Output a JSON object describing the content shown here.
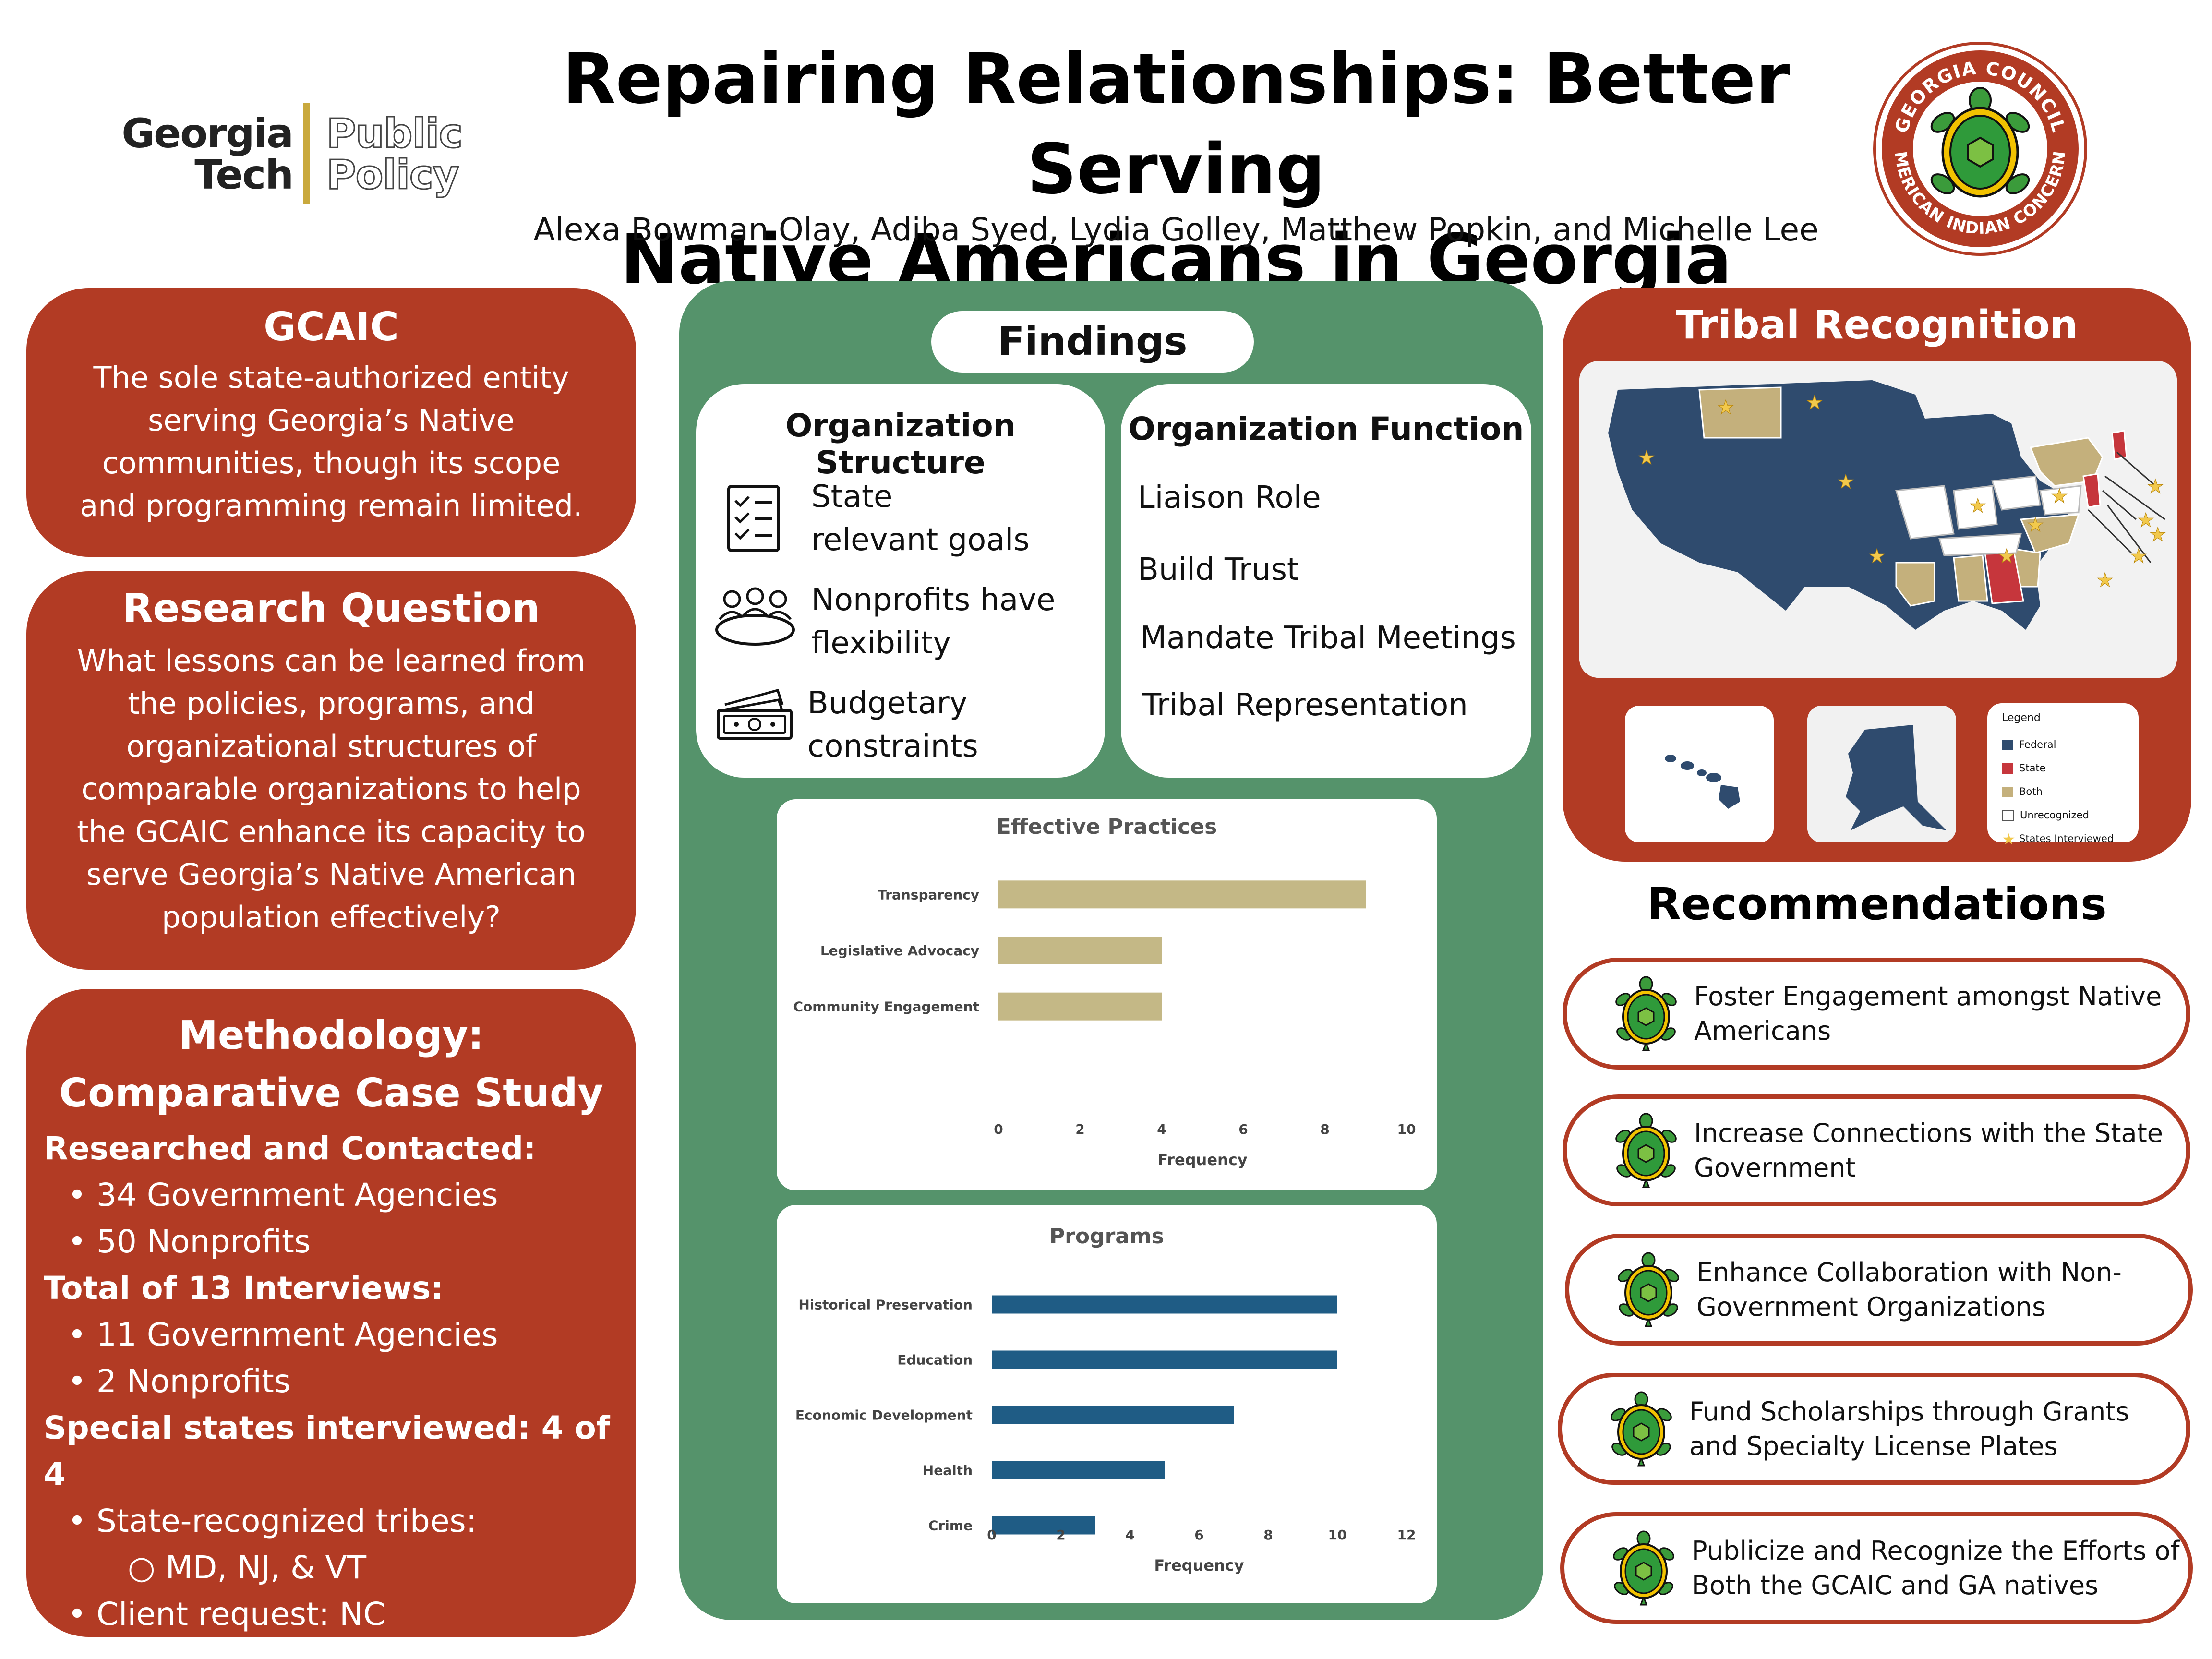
{
  "header": {
    "logo_line1": "Georgia",
    "logo_line2": "Tech",
    "logo_line3": "Public",
    "logo_line4": "Policy",
    "title_line1": "Repairing Relationships: Better Serving",
    "title_line2": "Native Americans in Georgia",
    "authors": "Alexa Bowman Olay, Adiba Syed, Lydia Golley, Matthew Popkin, and Michelle Lee",
    "seal_top": "GEORGIA COUNCIL",
    "seal_bottom": "AMERICAN INDIAN CONCERNS"
  },
  "gcaic": {
    "title": "GCAIC",
    "text": "The sole state-authorized entity serving Georgia’s Native communities, though its scope and programming remain limited."
  },
  "research": {
    "title": "Research Question",
    "text": "What lessons can be learned from the policies, programs, and organizational structures of comparable organizations to help the GCAIC enhance its capacity to serve Georgia’s Native American population effectively?"
  },
  "methodology": {
    "title_line1": "Methodology:",
    "title_line2": "Comparative Case Study",
    "researched_heading": "Researched and Contacted:",
    "researched_items": [
      "34 Government Agencies",
      "50 Nonprofits"
    ],
    "interviews_heading": "Total of 13 Interviews:",
    "interview_items": [
      "11 Government Agencies",
      "2 Nonprofits"
    ],
    "special_heading": "Special states interviewed: 4 of 4",
    "special_item1": "State-recognized tribes:",
    "special_sub": "MD, NJ, & VT",
    "special_item2": "Client request: NC"
  },
  "findings": {
    "title": "Findings",
    "structure": {
      "title": "Organization Structure",
      "items": [
        {
          "line1": "State",
          "line2": "relevant goals",
          "icon": "checklist-icon"
        },
        {
          "line1": "Nonprofits have",
          "line2": "flexibility",
          "icon": "people-table-icon"
        },
        {
          "line1": "Budgetary",
          "line2": "constraints",
          "icon": "money-icon"
        }
      ]
    },
    "function": {
      "title": "Organization Function",
      "items": [
        "Liaison Role",
        "Build Trust",
        "Mandate Tribal Meetings",
        "Tribal Representation"
      ]
    }
  },
  "chart_data": [
    {
      "type": "bar",
      "orientation": "horizontal",
      "title": "Effective Practices",
      "categories": [
        "Transparency",
        "Legislative Advocacy",
        "Community Engagement"
      ],
      "values": [
        9,
        4,
        4
      ],
      "xlabel": "Frequency",
      "xlim": [
        0,
        10
      ],
      "ticks": [
        "0",
        "2",
        "4",
        "6",
        "8",
        "10"
      ],
      "color": "#c4b886"
    },
    {
      "type": "bar",
      "orientation": "horizontal",
      "title": "Programs",
      "categories": [
        "Historical Preservation",
        "Education",
        "Economic Development",
        "Health",
        "Crime"
      ],
      "values": [
        10,
        10,
        7,
        5,
        3
      ],
      "xlabel": "Frequency",
      "xlim": [
        0,
        12
      ],
      "ticks": [
        "0",
        "2",
        "4",
        "6",
        "8",
        "10",
        "12"
      ],
      "color": "#1f5c85"
    }
  ],
  "tribal": {
    "title": "Tribal Recognition",
    "legend_title": "Legend",
    "legend": [
      {
        "label": "Federal",
        "color": "#2f4b6e"
      },
      {
        "label": "State",
        "color": "#c6363c"
      },
      {
        "label": "Both",
        "color": "#c4b07c"
      },
      {
        "label": "Unrecognized",
        "color": "#ffffff"
      },
      {
        "label": "States Interviewed",
        "color": "#f2c94c"
      }
    ]
  },
  "recommendations": {
    "title": "Recommendations",
    "items": [
      {
        "line1": "Foster Engagement amongst Native",
        "line2": "Americans"
      },
      {
        "line1": "Increase Connections with the State",
        "line2": "Government"
      },
      {
        "line1": "Enhance Collaboration with Non-",
        "line2": "Government Organizations"
      },
      {
        "line1": "Fund Scholarships through Grants",
        "line2": "and Specialty License Plates"
      },
      {
        "line1": "Publicize and Recognize the Efforts of",
        "line2": "Both the GCAIC and GA natives"
      }
    ]
  },
  "colors": {
    "panel_red": "#b23b24",
    "green": "#55936b",
    "federal": "#2f4b6e",
    "state": "#c6363c",
    "both": "#c4b07c"
  }
}
